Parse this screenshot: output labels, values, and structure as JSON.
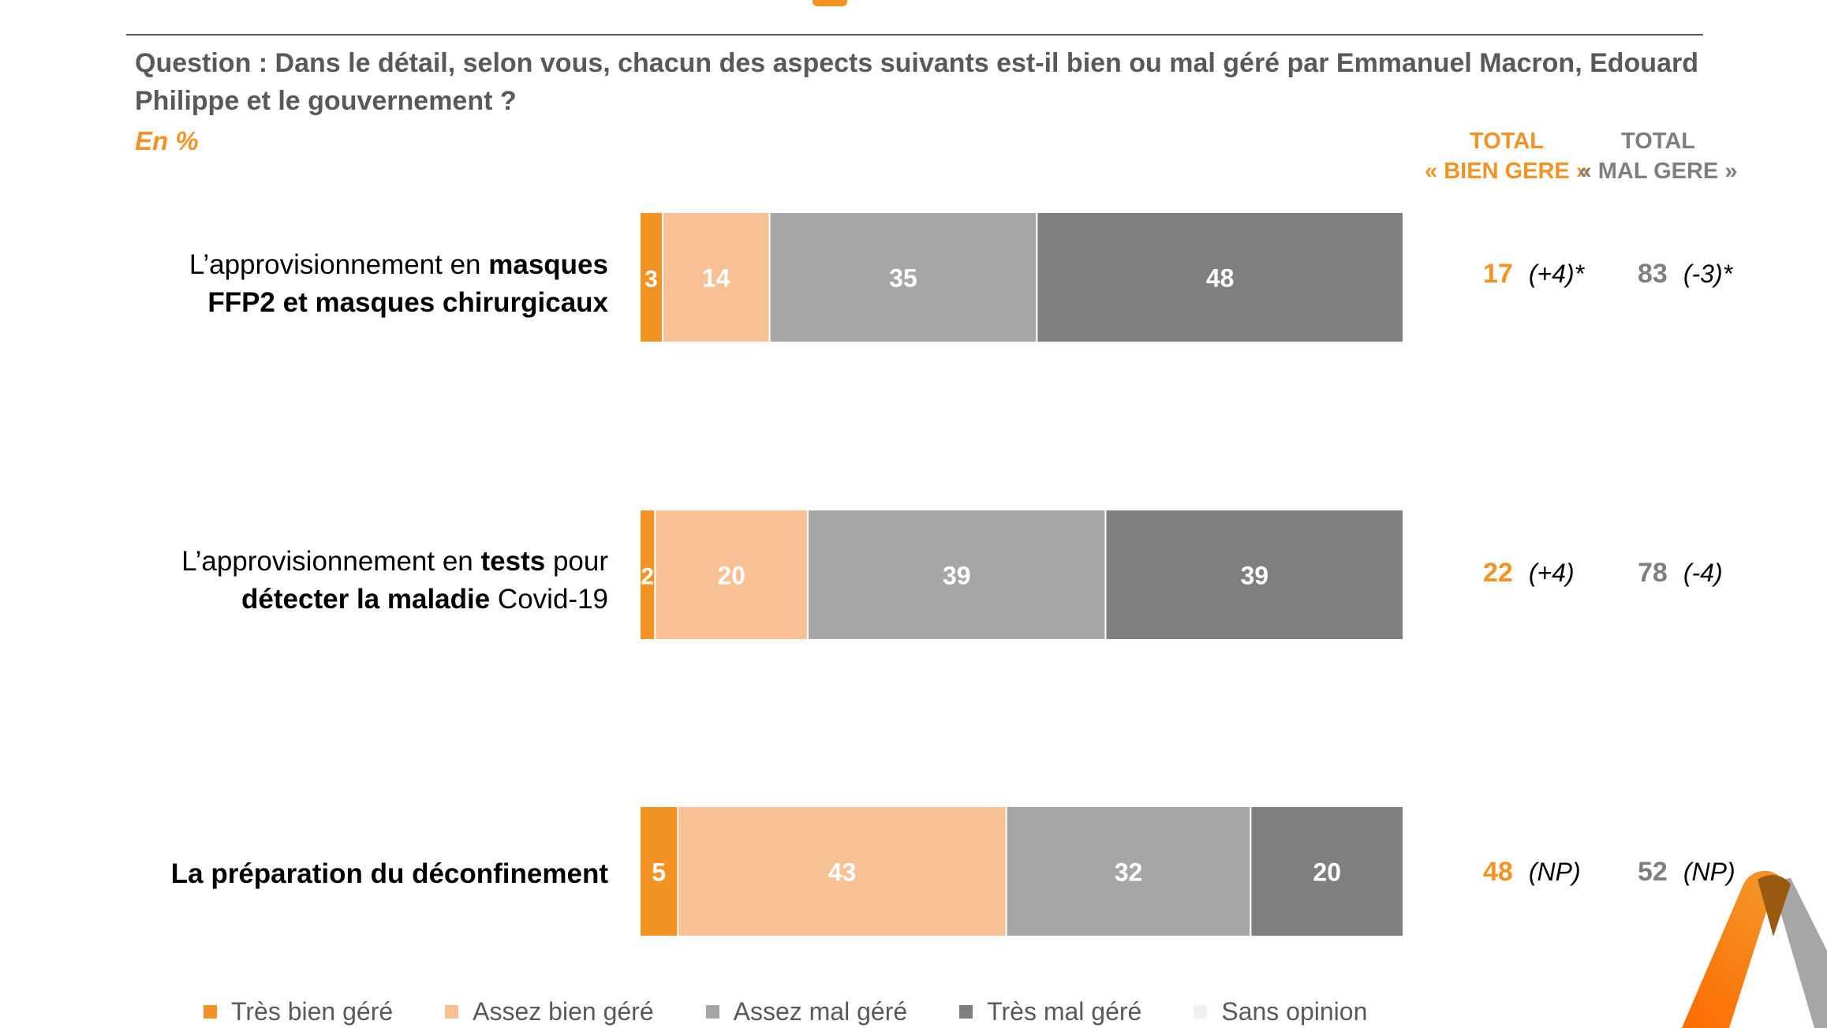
{
  "header": {
    "question": "Question : Dans le détail, selon vous, chacun des aspects suivants est-il bien ou mal géré par Emmanuel Macron, Edouard Philippe et le gouvernement ?",
    "unit": "En %",
    "col_bien": [
      "TOTAL",
      "« BIEN GERE »"
    ],
    "col_mal": [
      "TOTAL",
      "« MAL GERE »"
    ]
  },
  "colors": {
    "tres_bien": "#F39325",
    "assez_bien": "#F8C194",
    "assez_mal": "#A6A6A6",
    "tres_mal": "#7F7F7F",
    "sans_opinion": "#F0F0F4"
  },
  "chart_data": {
    "type": "bar",
    "orientation": "horizontal",
    "stacked": true,
    "categories": [
      "L’approvisionnement en masques FFP2 et masques chirurgicaux",
      "L’approvisionnement en tests pour détecter la maladie Covid-19",
      "La préparation du déconfinement"
    ],
    "category_parts": [
      [
        [
          {
            "t": "L’approvisionnement en ",
            "b": false
          },
          {
            "t": "masques",
            "b": true
          }
        ],
        [
          {
            "t": "FFP2 et masques chirurgicaux",
            "b": true
          }
        ]
      ],
      [
        [
          {
            "t": "L’approvisionnement en ",
            "b": false
          },
          {
            "t": "tests",
            "b": true
          },
          {
            "t": " pour",
            "b": false
          }
        ],
        [
          {
            "t": "détecter la maladie",
            "b": true
          },
          {
            "t": " Covid-19",
            "b": false
          }
        ]
      ],
      [
        [
          {
            "t": "La préparation du déconfinement",
            "b": true
          }
        ]
      ]
    ],
    "series": [
      {
        "name": "Très bien géré",
        "color": "#F39325",
        "values": [
          3,
          2,
          5
        ]
      },
      {
        "name": "Assez bien géré",
        "color": "#F8C194",
        "values": [
          14,
          20,
          43
        ]
      },
      {
        "name": "Assez mal géré",
        "color": "#A6A6A6",
        "values": [
          35,
          39,
          32
        ]
      },
      {
        "name": "Très mal géré",
        "color": "#7F7F7F",
        "values": [
          48,
          39,
          20
        ]
      },
      {
        "name": "Sans opinion",
        "color": "#F0F0F4",
        "values": [
          0,
          0,
          0
        ]
      }
    ],
    "xlim": [
      0,
      100
    ],
    "totals": [
      {
        "bien": "17",
        "bien_delta": "(+4)*",
        "mal": "83",
        "mal_delta": "(-3)*"
      },
      {
        "bien": "22",
        "bien_delta": "(+4)",
        "mal": "78",
        "mal_delta": "(-4)"
      },
      {
        "bien": "48",
        "bien_delta": "(NP)",
        "mal": "52",
        "mal_delta": "(NP)"
      }
    ],
    "legend_position": "bottom",
    "grid": false
  }
}
